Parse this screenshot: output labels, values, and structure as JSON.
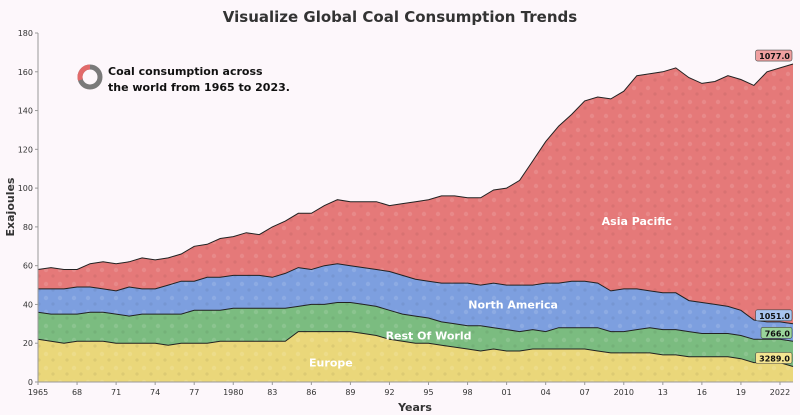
{
  "chart_data": {
    "type": "area",
    "stacked": true,
    "title": "Visualize Global Coal Consumption Trends",
    "xlabel": "Years",
    "ylabel": "Exajoules",
    "ylim": [
      0,
      180
    ],
    "yticks": [
      0,
      20,
      40,
      60,
      80,
      100,
      120,
      140,
      160,
      180
    ],
    "xlim": [
      1965,
      2023
    ],
    "xticks": [
      {
        "year": 1965,
        "label": "1965"
      },
      {
        "year": 1968,
        "label": "68"
      },
      {
        "year": 1971,
        "label": "71"
      },
      {
        "year": 1974,
        "label": "74"
      },
      {
        "year": 1977,
        "label": "77"
      },
      {
        "year": 1980,
        "label": "1980"
      },
      {
        "year": 1983,
        "label": "83"
      },
      {
        "year": 1986,
        "label": "86"
      },
      {
        "year": 1989,
        "label": "89"
      },
      {
        "year": 1992,
        "label": "92"
      },
      {
        "year": 1995,
        "label": "95"
      },
      {
        "year": 1998,
        "label": "98"
      },
      {
        "year": 2001,
        "label": "01"
      },
      {
        "year": 2004,
        "label": "04"
      },
      {
        "year": 2007,
        "label": "07"
      },
      {
        "year": 2010,
        "label": "2010"
      },
      {
        "year": 2013,
        "label": "13"
      },
      {
        "year": 2016,
        "label": "16"
      },
      {
        "year": 2019,
        "label": "19"
      },
      {
        "year": 2022,
        "label": "2022"
      }
    ],
    "x": [
      1965,
      1966,
      1967,
      1968,
      1969,
      1970,
      1971,
      1972,
      1973,
      1974,
      1975,
      1976,
      1977,
      1978,
      1979,
      1980,
      1981,
      1982,
      1983,
      1984,
      1985,
      1986,
      1987,
      1988,
      1989,
      1990,
      1991,
      1992,
      1993,
      1994,
      1995,
      1996,
      1997,
      1998,
      1999,
      2000,
      2001,
      2002,
      2003,
      2004,
      2005,
      2006,
      2007,
      2008,
      2009,
      2010,
      2011,
      2012,
      2013,
      2014,
      2015,
      2016,
      2017,
      2018,
      2019,
      2020,
      2021,
      2022,
      2023
    ],
    "cumulative_tops": {
      "Europe": [
        22,
        21,
        20,
        21,
        21,
        21,
        20,
        20,
        20,
        20,
        19,
        20,
        20,
        20,
        21,
        21,
        21,
        21,
        21,
        21,
        26,
        26,
        26,
        26,
        26,
        25,
        24,
        22,
        21,
        20,
        20,
        19,
        18,
        17,
        16,
        17,
        16,
        16,
        17,
        17,
        17,
        17,
        17,
        16,
        15,
        15,
        15,
        15,
        14,
        14,
        13,
        13,
        13,
        13,
        12,
        10,
        10,
        10,
        8
      ],
      "Rest Of World": [
        36,
        35,
        35,
        35,
        36,
        36,
        35,
        34,
        35,
        35,
        35,
        35,
        37,
        37,
        37,
        38,
        38,
        38,
        38,
        38,
        39,
        40,
        40,
        41,
        41,
        40,
        39,
        37,
        35,
        34,
        33,
        31,
        30,
        29,
        29,
        28,
        27,
        26,
        27,
        26,
        28,
        28,
        28,
        28,
        26,
        26,
        27,
        28,
        27,
        27,
        26,
        25,
        25,
        25,
        24,
        22,
        22,
        22,
        21
      ],
      "North America": [
        48,
        48,
        48,
        49,
        49,
        48,
        47,
        49,
        48,
        48,
        50,
        52,
        52,
        54,
        54,
        55,
        55,
        55,
        54,
        56,
        59,
        58,
        60,
        61,
        60,
        59,
        58,
        57,
        55,
        53,
        52,
        51,
        51,
        51,
        50,
        51,
        50,
        50,
        50,
        51,
        51,
        52,
        52,
        51,
        47,
        48,
        48,
        47,
        46,
        46,
        42,
        41,
        40,
        39,
        37,
        32,
        31,
        31,
        30
      ],
      "Asia Pacific": [
        58,
        59,
        58,
        58,
        61,
        62,
        61,
        62,
        64,
        63,
        64,
        66,
        70,
        71,
        74,
        75,
        77,
        76,
        80,
        83,
        87,
        87,
        91,
        94,
        93,
        93,
        93,
        91,
        92,
        93,
        94,
        96,
        96,
        95,
        95,
        99,
        100,
        104,
        114,
        124,
        132,
        138,
        145,
        147,
        146,
        150,
        158,
        159,
        160,
        162,
        157,
        154,
        155,
        158,
        156,
        153,
        160,
        162,
        164
      ]
    },
    "series": [
      {
        "name": "Europe",
        "color": "#e8d36c",
        "end_label": "3289.0",
        "end_color": "#f4e592"
      },
      {
        "name": "Rest Of World",
        "color": "#6db572",
        "end_label": "766.0",
        "end_color": "#9ad49a"
      },
      {
        "name": "North America",
        "color": "#6f95dc",
        "end_label": "1051.0",
        "end_color": "#a8c4ef"
      },
      {
        "name": "Asia Pacific",
        "color": "#e26a6a",
        "end_label": "1077.0",
        "end_color": "#f0a0a0"
      }
    ],
    "region_labels": [
      {
        "series": "Europe",
        "text": "Europe",
        "year": 1987.5,
        "value": 10
      },
      {
        "series": "Rest Of World",
        "text": "Rest Of World",
        "year": 1995,
        "value": 24
      },
      {
        "series": "North America",
        "text": "North America",
        "year": 2001.5,
        "value": 40
      },
      {
        "series": "Asia Pacific",
        "text": "Asia Pacific",
        "year": 2011,
        "value": 83
      }
    ],
    "annotation": {
      "line1": "Coal consumption across",
      "line2": "the world from 1965 to 2023."
    }
  }
}
